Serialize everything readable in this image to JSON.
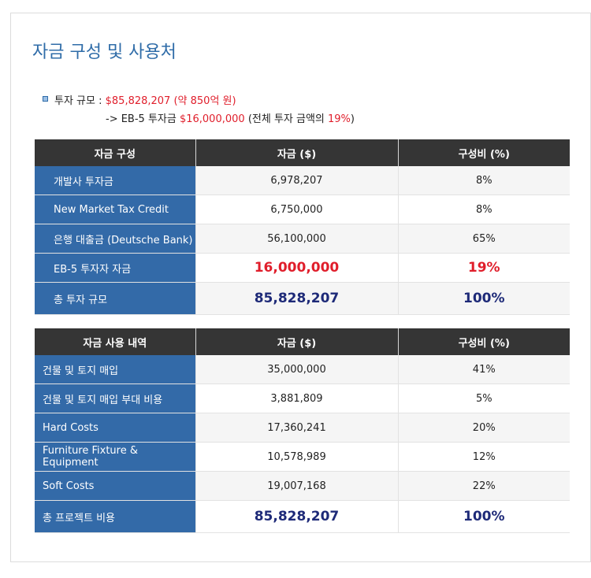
{
  "page": {
    "title": "자금 구성 및 사용처"
  },
  "summary": {
    "line1_label": "투자 규모 : ",
    "line1_value": "$85,828,207 (약 850억 원)",
    "line2_prefix": "-> EB-5 투자금 ",
    "line2_amount": "$16,000,000",
    "line2_mid": " (전체 투자 금액의 ",
    "line2_pct": "19%",
    "line2_suffix": ")"
  },
  "composition": {
    "headers": [
      "자금 구성",
      "자금 ($)",
      "구성비 (%)"
    ],
    "rows": [
      {
        "label": "개발사 투자금",
        "amount": "6,978,207",
        "pct": "8%"
      },
      {
        "label": "New Market Tax Credit",
        "amount": "6,750,000",
        "pct": "8%"
      },
      {
        "label": "은행 대출금 (Deutsche Bank)",
        "amount": "56,100,000",
        "pct": "65%"
      },
      {
        "label": "EB-5 투자자 자금",
        "amount": "16,000,000",
        "pct": "19%"
      },
      {
        "label": "총 투자 규모",
        "amount": "85,828,207",
        "pct": "100%"
      }
    ]
  },
  "usage": {
    "headers": [
      "자금 사용 내역",
      "자금 ($)",
      "구성비 (%)"
    ],
    "rows": [
      {
        "label": "건물 및 토지 매입",
        "amount": "35,000,000",
        "pct": "41%"
      },
      {
        "label": "건물 및 토지 매입 부대 비용",
        "amount": "3,881,809",
        "pct": "5%"
      },
      {
        "label": "Hard Costs",
        "amount": "17,360,241",
        "pct": "20%"
      },
      {
        "label": "Furniture Fixture & Equipment",
        "amount": "10,578,989",
        "pct": "12%"
      },
      {
        "label": "Soft Costs",
        "amount": "19,007,168",
        "pct": "22%"
      },
      {
        "label": "총 프로젝트 비용",
        "amount": "85,828,207",
        "pct": "100%"
      }
    ]
  },
  "colors": {
    "accent": "#2f6ca8",
    "label_bg": "#336aa8",
    "header_bg": "#353535",
    "highlight_red": "#e01e2b",
    "total_navy": "#1e2a78"
  }
}
